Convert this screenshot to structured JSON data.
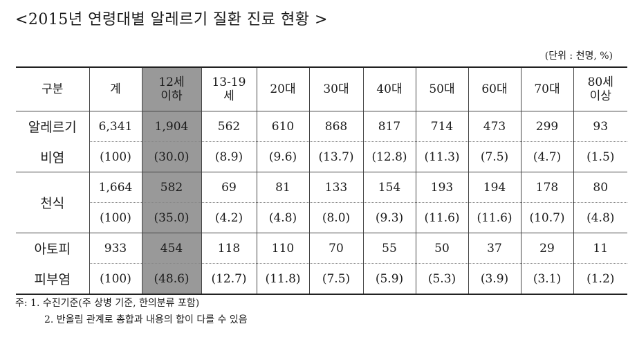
{
  "title": "<2015년 연령대별 알레르기 질환 진료 현황 >",
  "unit": "(단위 : 천명, %)",
  "table": {
    "headers": [
      "구분",
      "계",
      "12세\n이하",
      "13-19\n세",
      "20대",
      "30대",
      "40대",
      "50대",
      "60대",
      "70대",
      "80세\n이상"
    ],
    "groups": [
      {
        "label": [
          "알레르기",
          "비염"
        ],
        "count": [
          "6,341",
          "1,904",
          "562",
          "610",
          "868",
          "817",
          "714",
          "473",
          "299",
          "93"
        ],
        "pct": [
          "(100)",
          "(30.0)",
          "(8.9)",
          "(9.6)",
          "(13.7)",
          "(12.8)",
          "(11.3)",
          "(7.5)",
          "(4.7)",
          "(1.5)"
        ]
      },
      {
        "label": [
          "천식"
        ],
        "count": [
          "1,664",
          "582",
          "69",
          "81",
          "133",
          "154",
          "193",
          "194",
          "178",
          "80"
        ],
        "pct": [
          "(100)",
          "(35.0)",
          "(4.2)",
          "(4.8)",
          "(8.0)",
          "(9.3)",
          "(11.6)",
          "(11.6)",
          "(10.7)",
          "(4.8)"
        ]
      },
      {
        "label": [
          "아토피",
          "피부염"
        ],
        "count": [
          "933",
          "454",
          "118",
          "110",
          "70",
          "55",
          "50",
          "37",
          "29",
          "11"
        ],
        "pct": [
          "(100)",
          "(48.6)",
          "(12.7)",
          "(11.8)",
          "(7.5)",
          "(5.9)",
          "(5.3)",
          "(3.9)",
          "(3.1)",
          "(1.2)"
        ]
      }
    ]
  },
  "notes": {
    "line1": "주: 1. 수진기준(주 상병 기준, 한의분류 포함)",
    "line2": "2. 반올림 관계로 총합과 내용의 합이 다를 수 있음"
  }
}
